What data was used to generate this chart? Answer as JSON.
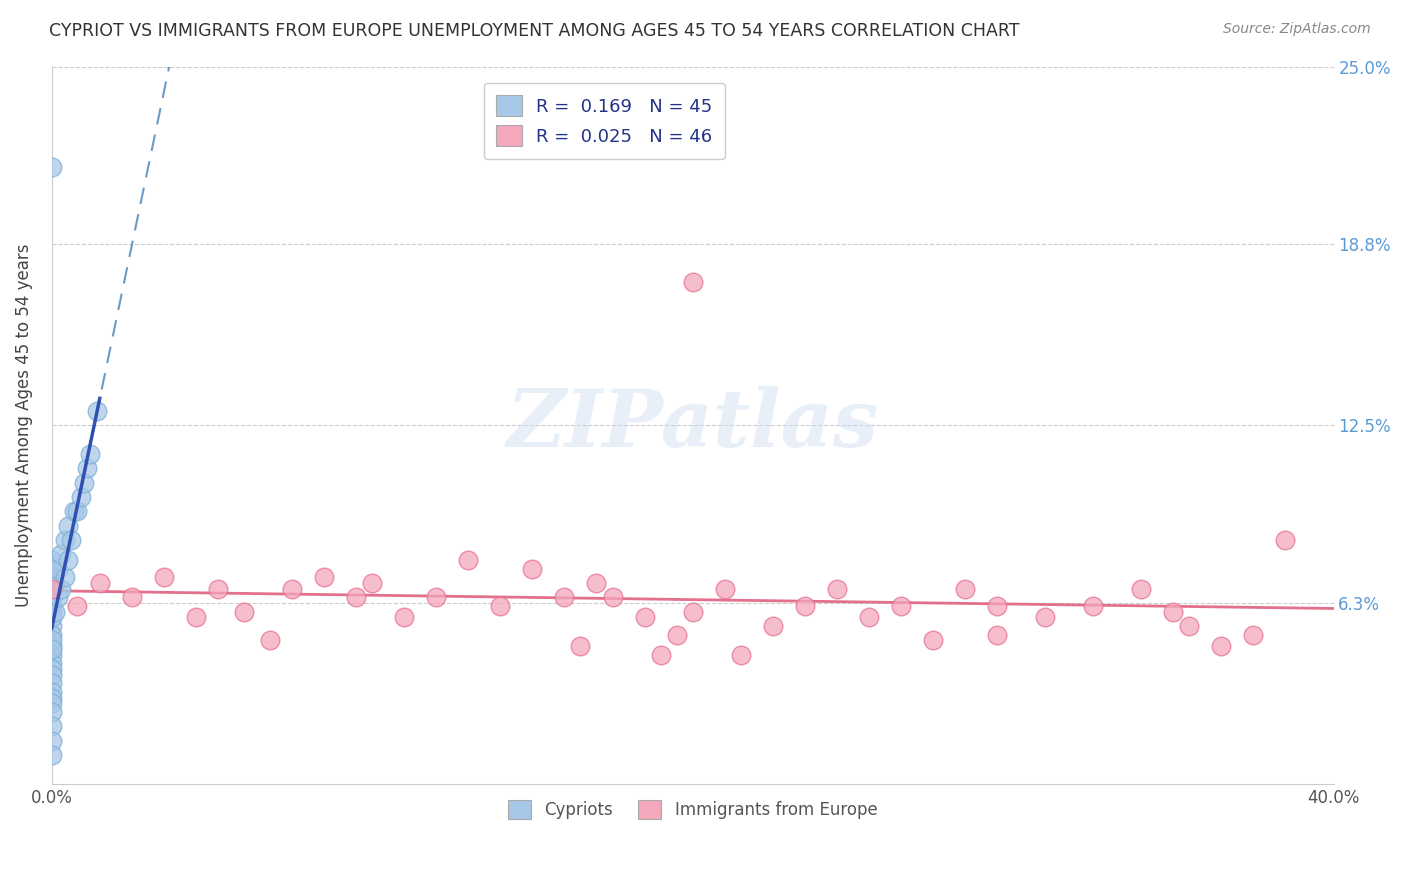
{
  "title": "CYPRIOT VS IMMIGRANTS FROM EUROPE UNEMPLOYMENT AMONG AGES 45 TO 54 YEARS CORRELATION CHART",
  "source": "Source: ZipAtlas.com",
  "ylabel": "Unemployment Among Ages 45 to 54 years",
  "xlim": [
    0.0,
    0.4
  ],
  "ylim": [
    0.0,
    0.25
  ],
  "yticks": [
    0.0,
    0.063,
    0.125,
    0.188,
    0.25
  ],
  "ytick_labels": [
    "",
    "6.3%",
    "12.5%",
    "18.8%",
    "25.0%"
  ],
  "xticks": [
    0.0,
    0.1,
    0.2,
    0.3,
    0.4
  ],
  "xtick_labels": [
    "0.0%",
    "",
    "",
    "",
    "40.0%"
  ],
  "cypriot_color": "#a8c8e8",
  "immigrant_color": "#f4a8bb",
  "cypriot_edge": "#7bafd4",
  "immigrant_edge": "#e87090",
  "trend_blue_color": "#5a8fc0",
  "trend_blue_solid_color": "#2244aa",
  "trend_pink_color": "#e06080",
  "cypriot_R": 0.169,
  "cypriot_N": 45,
  "immigrant_R": 0.025,
  "immigrant_N": 46,
  "watermark_text": "ZIPatlas",
  "cypriot_x": [
    0.0,
    0.0,
    0.0,
    0.0,
    0.0,
    0.0,
    0.0,
    0.0,
    0.0,
    0.0,
    0.0,
    0.0,
    0.0,
    0.0,
    0.0,
    0.0,
    0.0,
    0.0,
    0.0,
    0.0,
    0.0,
    0.0,
    0.0,
    0.0,
    0.0,
    0.0,
    0.001,
    0.001,
    0.002,
    0.002,
    0.003,
    0.003,
    0.004,
    0.004,
    0.005,
    0.005,
    0.006,
    0.007,
    0.008,
    0.009,
    0.01,
    0.011,
    0.012,
    0.014,
    0.0
  ],
  "cypriot_y": [
    0.055,
    0.06,
    0.062,
    0.065,
    0.058,
    0.052,
    0.048,
    0.045,
    0.042,
    0.04,
    0.038,
    0.035,
    0.032,
    0.068,
    0.07,
    0.072,
    0.075,
    0.078,
    0.05,
    0.047,
    0.03,
    0.028,
    0.025,
    0.02,
    0.015,
    0.01,
    0.06,
    0.07,
    0.065,
    0.075,
    0.068,
    0.08,
    0.072,
    0.085,
    0.078,
    0.09,
    0.085,
    0.095,
    0.095,
    0.1,
    0.105,
    0.11,
    0.115,
    0.13,
    0.215
  ],
  "immigrant_x": [
    0.0,
    0.008,
    0.015,
    0.025,
    0.035,
    0.045,
    0.052,
    0.06,
    0.068,
    0.075,
    0.085,
    0.095,
    0.1,
    0.11,
    0.12,
    0.13,
    0.14,
    0.15,
    0.16,
    0.165,
    0.17,
    0.175,
    0.185,
    0.195,
    0.2,
    0.21,
    0.215,
    0.225,
    0.235,
    0.245,
    0.255,
    0.265,
    0.275,
    0.285,
    0.295,
    0.31,
    0.325,
    0.34,
    0.355,
    0.365,
    0.375,
    0.385,
    0.295,
    0.35,
    0.2,
    0.19
  ],
  "immigrant_y": [
    0.068,
    0.062,
    0.07,
    0.065,
    0.072,
    0.058,
    0.068,
    0.06,
    0.05,
    0.068,
    0.072,
    0.065,
    0.07,
    0.058,
    0.065,
    0.078,
    0.062,
    0.075,
    0.065,
    0.048,
    0.07,
    0.065,
    0.058,
    0.052,
    0.06,
    0.068,
    0.045,
    0.055,
    0.062,
    0.068,
    0.058,
    0.062,
    0.05,
    0.068,
    0.052,
    0.058,
    0.062,
    0.068,
    0.055,
    0.048,
    0.052,
    0.085,
    0.062,
    0.06,
    0.175,
    0.045
  ]
}
